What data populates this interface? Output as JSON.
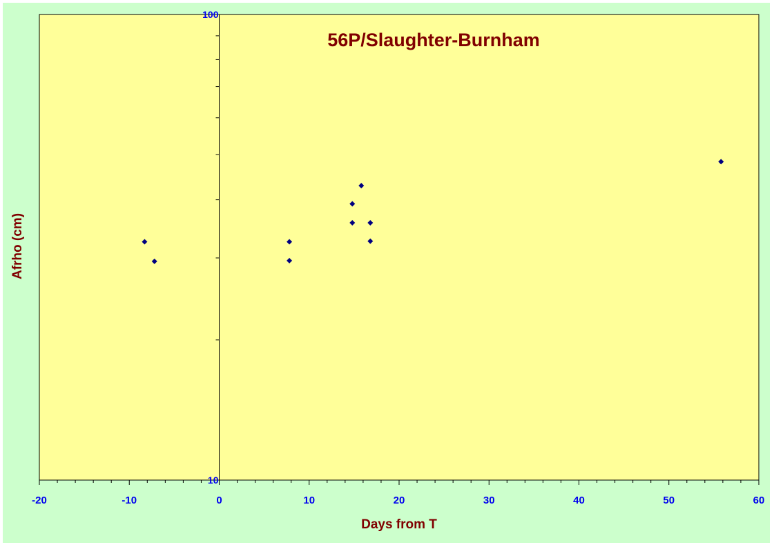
{
  "chart_data": {
    "type": "scatter",
    "title": "56P/Slaughter-Burnham",
    "xlabel": "Days from T",
    "ylabel": "Afrho (cm)",
    "xlim": [
      -20,
      60
    ],
    "ylim": [
      10,
      100
    ],
    "y_scale": "log",
    "x_ticks": [
      -20,
      -10,
      0,
      10,
      20,
      30,
      40,
      50,
      60
    ],
    "y_tick_labels": [
      10,
      100
    ],
    "grid": false,
    "legend": "none",
    "colors": {
      "plot_background": "#ffff99",
      "outer_background": "#ccffcc",
      "marker": "#000080",
      "tick_labels": "#0000ee",
      "titles": "#800000"
    },
    "series": [
      {
        "marker": "diamond",
        "x": [
          -8.3,
          -7.2,
          7.8,
          7.8,
          14.8,
          14.8,
          15.8,
          16.8,
          16.8,
          55.8
        ],
        "y": [
          32.5,
          29.5,
          32.5,
          29.6,
          39.2,
          35.7,
          42.9,
          35.7,
          32.6,
          48.3
        ]
      }
    ]
  }
}
